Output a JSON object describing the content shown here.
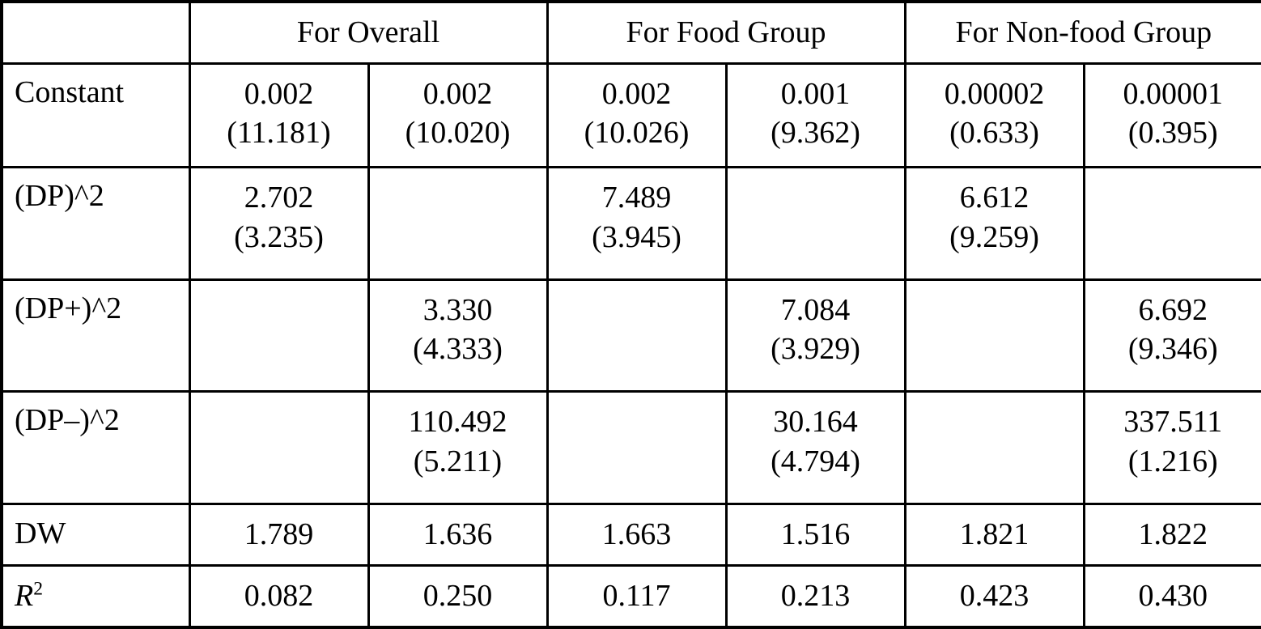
{
  "table": {
    "corner_label": "",
    "column_groups": [
      {
        "label": "For Overall",
        "colspan": 2
      },
      {
        "label": "For Food Group",
        "colspan": 2
      },
      {
        "label": "For Non-food Group",
        "colspan": 2
      }
    ],
    "rows": [
      {
        "label": "Constant",
        "cells": [
          [
            "0.002",
            "(11.181)"
          ],
          [
            "0.002",
            "(10.020)"
          ],
          [
            "0.002",
            "(10.026)"
          ],
          [
            "0.001",
            "(9.362)"
          ],
          [
            "0.00002",
            "(0.633)"
          ],
          [
            "0.00001",
            "(0.395)"
          ]
        ]
      },
      {
        "label": "(DP)^2",
        "cells": [
          [
            "2.702",
            "(3.235)"
          ],
          [],
          [
            "7.489",
            "(3.945)"
          ],
          [],
          [
            "6.612",
            "(9.259)"
          ],
          []
        ]
      },
      {
        "label": "(DP+)^2",
        "cells": [
          [],
          [
            "3.330",
            "(4.333)"
          ],
          [],
          [
            "7.084",
            "(3.929)"
          ],
          [],
          [
            "6.692",
            "(9.346)"
          ]
        ]
      },
      {
        "label": "(DP–)^2",
        "cells": [
          [],
          [
            "110.492",
            "(5.211)"
          ],
          [],
          [
            "30.164",
            "(4.794)"
          ],
          [],
          [
            "337.511",
            "(1.216)"
          ]
        ]
      },
      {
        "label": "DW",
        "cells": [
          [
            "1.789"
          ],
          [
            "1.636"
          ],
          [
            "1.663"
          ],
          [
            "1.516"
          ],
          [
            "1.821"
          ],
          [
            "1.822"
          ]
        ]
      },
      {
        "label": "R",
        "label_sup": "2",
        "label_italic": true,
        "cells": [
          [
            "0.082"
          ],
          [
            "0.250"
          ],
          [
            "0.117"
          ],
          [
            "0.213"
          ],
          [
            "0.423"
          ],
          [
            "0.430"
          ]
        ]
      }
    ]
  },
  "colors": {
    "border": "#000000",
    "background": "#ffffff",
    "text": "#000000"
  }
}
